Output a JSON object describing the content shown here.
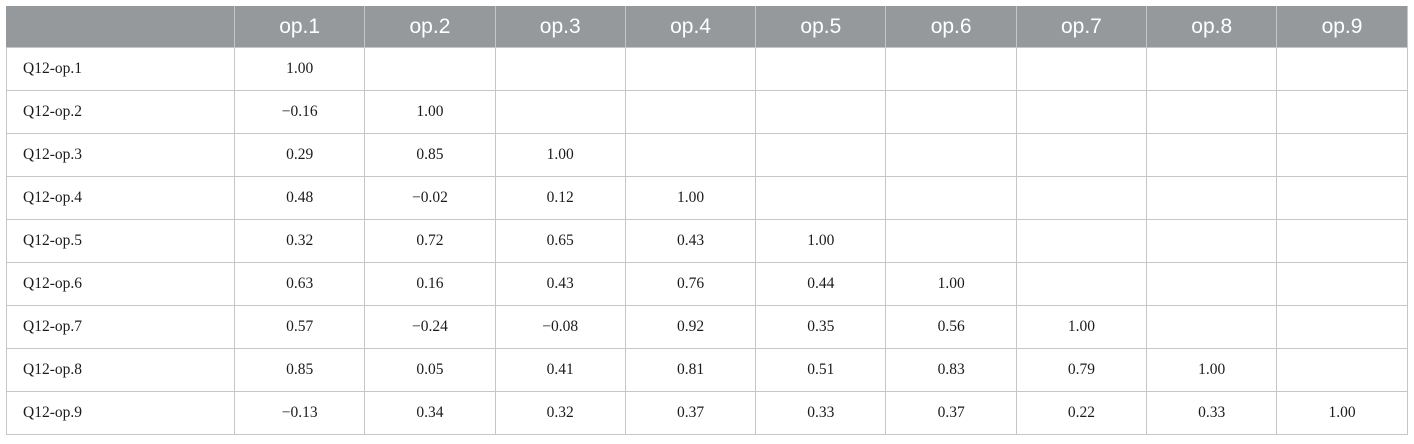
{
  "table": {
    "corner": "",
    "columns": [
      "op.1",
      "op.2",
      "op.3",
      "op.4",
      "op.5",
      "op.6",
      "op.7",
      "op.8",
      "op.9"
    ],
    "rows": [
      {
        "label": "Q12-op.1",
        "cells": [
          "1.00",
          "",
          "",
          "",
          "",
          "",
          "",
          "",
          ""
        ]
      },
      {
        "label": "Q12-op.2",
        "cells": [
          "−0.16",
          "1.00",
          "",
          "",
          "",
          "",
          "",
          "",
          ""
        ]
      },
      {
        "label": "Q12-op.3",
        "cells": [
          "0.29",
          "0.85",
          "1.00",
          "",
          "",
          "",
          "",
          "",
          ""
        ]
      },
      {
        "label": "Q12-op.4",
        "cells": [
          "0.48",
          "−0.02",
          "0.12",
          "1.00",
          "",
          "",
          "",
          "",
          ""
        ]
      },
      {
        "label": "Q12-op.5",
        "cells": [
          "0.32",
          "0.72",
          "0.65",
          "0.43",
          "1.00",
          "",
          "",
          "",
          ""
        ]
      },
      {
        "label": "Q12-op.6",
        "cells": [
          "0.63",
          "0.16",
          "0.43",
          "0.76",
          "0.44",
          "1.00",
          "",
          "",
          ""
        ]
      },
      {
        "label": "Q12-op.7",
        "cells": [
          "0.57",
          "−0.24",
          "−0.08",
          "0.92",
          "0.35",
          "0.56",
          "1.00",
          "",
          ""
        ]
      },
      {
        "label": "Q12-op.8",
        "cells": [
          "0.85",
          "0.05",
          "0.41",
          "0.81",
          "0.51",
          "0.83",
          "0.79",
          "1.00",
          ""
        ]
      },
      {
        "label": "Q12-op.9",
        "cells": [
          "−0.13",
          "0.34",
          "0.32",
          "0.37",
          "0.33",
          "0.37",
          "0.22",
          "0.33",
          "1.00"
        ]
      }
    ]
  },
  "colors": {
    "header_bg": "#95999c",
    "header_text": "#ffffff",
    "grid_line": "#c4c6c8",
    "cell_text": "#1b1b1b"
  }
}
